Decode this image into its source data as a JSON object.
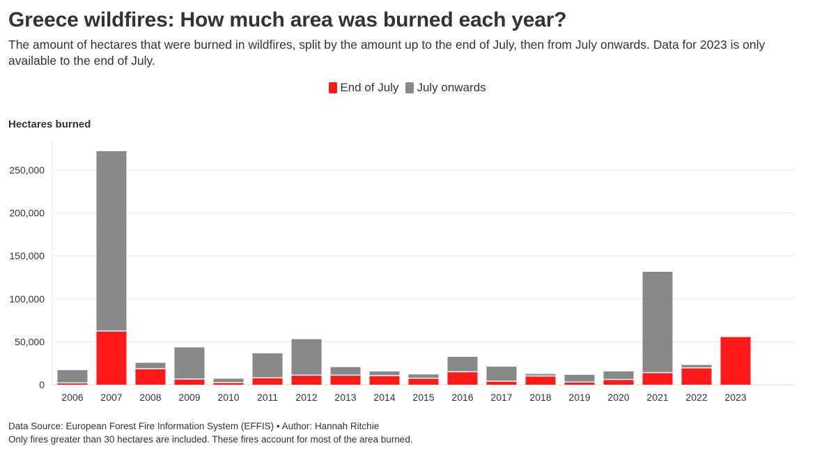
{
  "header": {
    "title": "Greece wildfires: How much area was burned each year?",
    "subtitle": "The amount of hectares that were burned in wildfires, split by the amount up to the end of July, then from July onwards. Data for 2023 is only available to the end of July."
  },
  "legend": {
    "items": [
      {
        "label": "End of July",
        "color": "#ff1a1a"
      },
      {
        "label": "July onwards",
        "color": "#888888"
      }
    ]
  },
  "footer": {
    "source": "Data Source: European Forest Fire Information System (EFFIS) • Author: Hannah Ritchie",
    "note": "Only fires greater than 30 hectares are included. These fires account for most of the area burned."
  },
  "chart_data": {
    "type": "bar",
    "stacked": true,
    "ylabel": "Hectares burned",
    "ylim": [
      0,
      280000
    ],
    "yticks": [
      0,
      50000,
      100000,
      150000,
      200000,
      250000
    ],
    "ytick_labels": [
      "0",
      "50,000",
      "100,000",
      "150,000",
      "200,000",
      "250,000"
    ],
    "grid": true,
    "legend_position": "top-center",
    "categories": [
      "2006",
      "2007",
      "2008",
      "2009",
      "2010",
      "2011",
      "2012",
      "2013",
      "2014",
      "2015",
      "2016",
      "2017",
      "2018",
      "2019",
      "2020",
      "2021",
      "2022",
      "2023"
    ],
    "series": [
      {
        "name": "End of July",
        "color": "#ff1a1a",
        "values": [
          1500,
          62000,
          18000,
          6000,
          2000,
          7500,
          10500,
          10500,
          10000,
          7000,
          14500,
          3500,
          9500,
          2500,
          5500,
          13500,
          19000,
          55500
        ]
      },
      {
        "name": "July onwards",
        "color": "#888888",
        "values": [
          15500,
          210000,
          7500,
          37500,
          5000,
          29000,
          42500,
          10000,
          5500,
          5000,
          18000,
          17500,
          3000,
          9000,
          10000,
          118000,
          4000,
          0
        ]
      }
    ]
  }
}
